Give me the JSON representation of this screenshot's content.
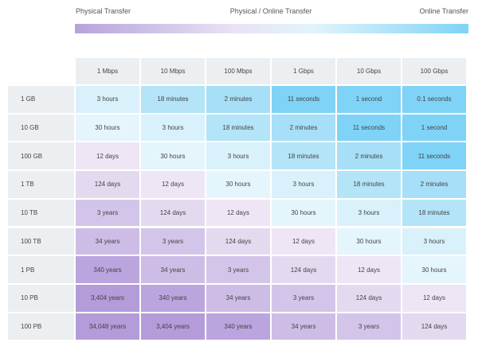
{
  "header": {
    "left": "Physical Transfer",
    "center": "Physical / Online Transfer",
    "right": "Online Transfer"
  },
  "table": {
    "columns": [
      "1 Mbps",
      "10 Mbps",
      "100 Mbps",
      "1 Gbps",
      "10 Gbps",
      "100 Gbps"
    ],
    "rows": [
      {
        "label": "1 GB",
        "cells": [
          "3 hours",
          "18 minutes",
          "2 minutes",
          "11 seconds",
          "1 second",
          "0.1 seconds"
        ]
      },
      {
        "label": "10 GB",
        "cells": [
          "30 hours",
          "3 hours",
          "18 minutes",
          "2 minutes",
          "11 seconds",
          "1 second"
        ]
      },
      {
        "label": "100 GB",
        "cells": [
          "12 days",
          "30 hours",
          "3 hours",
          "18 minutes",
          "2 minutes",
          "11 seconds"
        ]
      },
      {
        "label": "1 TB",
        "cells": [
          "124 days",
          "12 days",
          "30 hours",
          "3 hours",
          "18 minutes",
          "2 minutes"
        ]
      },
      {
        "label": "10 TB",
        "cells": [
          "3 years",
          "124 days",
          "12 days",
          "30 hours",
          "3 hours",
          "18 minutes"
        ]
      },
      {
        "label": "100 TB",
        "cells": [
          "34 years",
          "3 years",
          "124 days",
          "12 days",
          "30 hours",
          "3 hours"
        ]
      },
      {
        "label": "1 PB",
        "cells": [
          "340 years",
          "34 years",
          "3 years",
          "124 days",
          "12 days",
          "30 hours"
        ]
      },
      {
        "label": "10 PB",
        "cells": [
          "3,404 years",
          "340 years",
          "34 years",
          "3 years",
          "124 days",
          "12 days"
        ]
      },
      {
        "label": "100 PB",
        "cells": [
          "34,048 years",
          "3,404 years",
          "340 years",
          "34 years",
          "3 years",
          "124 days"
        ]
      }
    ]
  }
}
